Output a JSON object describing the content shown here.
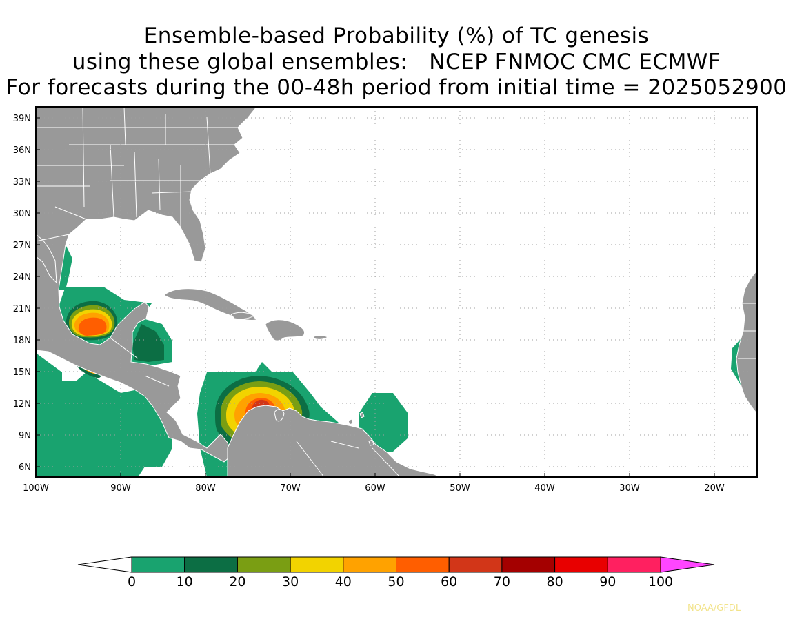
{
  "title": {
    "line1": "Ensemble-based Probability (%) of TC genesis",
    "line2": "using these global ensembles:   NCEP FNMOC CMC ECMWF",
    "line3": "For forecasts during the 00-48h period from initial time = 2025052900"
  },
  "axes": {
    "lat_labels": [
      "39N",
      "36N",
      "33N",
      "30N",
      "27N",
      "24N",
      "21N",
      "18N",
      "15N",
      "12N",
      "9N",
      "6N"
    ],
    "lon_labels": [
      "100W",
      "90W",
      "80W",
      "70W",
      "60W",
      "50W",
      "40W",
      "30W",
      "20W"
    ],
    "lon_range": [
      -100,
      -15
    ],
    "lat_range": [
      5,
      40
    ],
    "grid": "dotted"
  },
  "colors": {
    "land": "#999999",
    "border": "#ffffff",
    "ocean": "#ffffff"
  },
  "colorbar": {
    "levels": [
      "0",
      "10",
      "20",
      "30",
      "40",
      "50",
      "60",
      "70",
      "80",
      "90",
      "100"
    ],
    "colors": [
      "#19a36f",
      "#0c6e44",
      "#7a9e13",
      "#f2d300",
      "#ffa200",
      "#ff5e00",
      "#d23618",
      "#a40000",
      "#e80000",
      "#ff2060"
    ],
    "under_color": "#ffffff",
    "over_color": "#ff46ff"
  },
  "chart_data": {
    "type": "map",
    "field": "TC genesis probability (%)",
    "regions": [
      {
        "area": "Bay of Campeche / Yucatan",
        "max_prob_bin": "50-60"
      },
      {
        "area": "Gulf of Honduras",
        "max_prob_bin": "10-20"
      },
      {
        "area": "Eastern Pacific off Guatemala",
        "max_prob_bin": "30-40"
      },
      {
        "area": "Eastern Pacific south of Mexico",
        "max_prob_bin": "0-10"
      },
      {
        "area": "Southwestern Caribbean (off Colombia)",
        "max_prob_bin": "50-60"
      },
      {
        "area": "East of Lesser Antilles",
        "max_prob_bin": "0-10"
      },
      {
        "area": "Off West Africa",
        "max_prob_bin": "0-10"
      }
    ]
  },
  "credit": "NOAA/GFDL"
}
